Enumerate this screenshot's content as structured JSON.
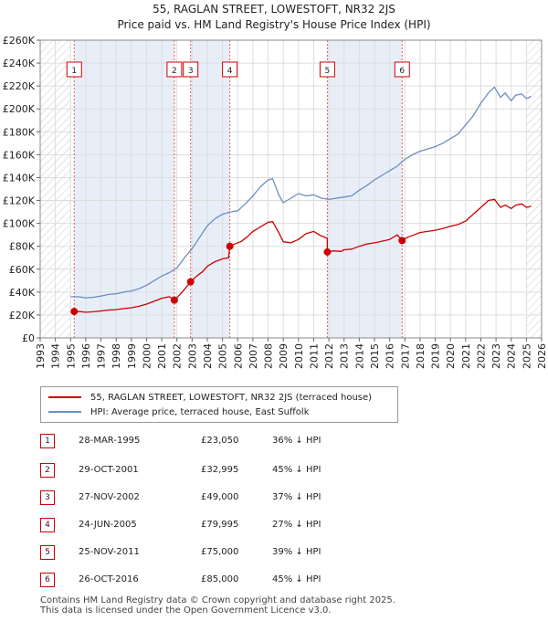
{
  "title": "55, RAGLAN STREET, LOWESTOFT, NR32 2JS",
  "subtitle": "Price paid vs. HM Land Registry's House Price Index (HPI)",
  "colors": {
    "red": "#cc0000",
    "blue": "#6a8fc0",
    "grid": "#dddddd",
    "band": "#e8eef8",
    "dash": "#e06060"
  },
  "legend": {
    "red_label": "55, RAGLAN STREET, LOWESTOFT, NR32 2JS (terraced house)",
    "blue_label": "HPI: Average price, terraced house, East Suffolk"
  },
  "sales": [
    {
      "num": "1",
      "date": "28-MAR-1995",
      "price": "£23,050",
      "hpi": "36% ↓ HPI"
    },
    {
      "num": "2",
      "date": "29-OCT-2001",
      "price": "£32,995",
      "hpi": "45% ↓ HPI"
    },
    {
      "num": "3",
      "date": "27-NOV-2002",
      "price": "£49,000",
      "hpi": "37% ↓ HPI"
    },
    {
      "num": "4",
      "date": "24-JUN-2005",
      "price": "£79,995",
      "hpi": "27% ↓ HPI"
    },
    {
      "num": "5",
      "date": "25-NOV-2011",
      "price": "£75,000",
      "hpi": "39% ↓ HPI"
    },
    {
      "num": "6",
      "date": "26-OCT-2016",
      "price": "£85,000",
      "hpi": "45% ↓ HPI"
    }
  ],
  "footer": {
    "line1": "Contains HM Land Registry data © Crown copyright and database right 2025.",
    "line2": "This data is licensed under the Open Government Licence v3.0."
  },
  "chart_data": {
    "type": "line",
    "title": "55, RAGLAN STREET, LOWESTOFT, NR32 2JS",
    "subtitle": "Price paid vs. HM Land Registry's House Price Index (HPI)",
    "xlim": [
      1993,
      2026
    ],
    "ylim": [
      0,
      260000
    ],
    "x_ticks": [
      1993,
      1994,
      1995,
      1996,
      1997,
      1998,
      1999,
      2000,
      2001,
      2002,
      2003,
      2004,
      2005,
      2006,
      2007,
      2008,
      2009,
      2010,
      2011,
      2012,
      2013,
      2014,
      2015,
      2016,
      2017,
      2018,
      2019,
      2020,
      2021,
      2022,
      2023,
      2024,
      2025,
      2026
    ],
    "y_ticks": [
      0,
      20000,
      40000,
      60000,
      80000,
      100000,
      120000,
      140000,
      160000,
      180000,
      200000,
      220000,
      240000,
      260000
    ],
    "y_tick_labels": [
      "£0",
      "£20K",
      "£40K",
      "£60K",
      "£80K",
      "£100K",
      "£120K",
      "£140K",
      "£160K",
      "£180K",
      "£200K",
      "£220K",
      "£240K",
      "£260K"
    ],
    "hatched_ranges": [
      [
        1993,
        1995.0
      ],
      [
        2025.0,
        2026
      ]
    ],
    "sale_markers": [
      {
        "label": "1",
        "year": 1995.24,
        "price": 23050
      },
      {
        "label": "2",
        "year": 2001.83,
        "price": 32995
      },
      {
        "label": "3",
        "year": 2002.9,
        "price": 49000
      },
      {
        "label": "4",
        "year": 2005.48,
        "price": 79995
      },
      {
        "label": "5",
        "year": 2011.9,
        "price": 75000
      },
      {
        "label": "6",
        "year": 2016.82,
        "price": 85000
      }
    ],
    "series": [
      {
        "name": "HPI: Average price, terraced house, East Suffolk",
        "color": "#6a8fc0",
        "x": [
          1995.0,
          1995.5,
          1996,
          1996.5,
          1997,
          1997.5,
          1998,
          1998.5,
          1999,
          1999.5,
          2000,
          2000.5,
          2001,
          2001.5,
          2002,
          2002.5,
          2003,
          2003.5,
          2004,
          2004.5,
          2005,
          2005.5,
          2006,
          2006.5,
          2007,
          2007.5,
          2008,
          2008.3,
          2008.7,
          2009,
          2009.5,
          2010,
          2010.5,
          2011,
          2011.5,
          2012,
          2012.5,
          2013,
          2013.5,
          2014,
          2014.5,
          2015,
          2015.5,
          2016,
          2016.5,
          2017,
          2017.5,
          2018,
          2018.5,
          2019,
          2019.5,
          2020,
          2020.5,
          2021,
          2021.5,
          2022,
          2022.5,
          2022.9,
          2023.3,
          2023.6,
          2024,
          2024.3,
          2024.7,
          2025,
          2025.3
        ],
        "values": [
          36000,
          36000,
          35000,
          35500,
          36500,
          38000,
          38500,
          40000,
          41000,
          43000,
          46000,
          50000,
          54000,
          57000,
          61000,
          70000,
          78000,
          88000,
          98000,
          104000,
          108000,
          110000,
          111000,
          117000,
          124000,
          132000,
          138000,
          139000,
          125000,
          118000,
          122000,
          126000,
          124000,
          125000,
          122000,
          121000,
          122000,
          123000,
          124000,
          129000,
          133000,
          138000,
          142000,
          146000,
          150000,
          156000,
          160000,
          163000,
          165000,
          167000,
          170000,
          174000,
          178000,
          186000,
          194000,
          205000,
          214000,
          219000,
          210000,
          214000,
          207000,
          212000,
          213000,
          209000,
          211000
        ]
      },
      {
        "name": "55, RAGLAN STREET, LOWESTOFT, NR32 2JS (terraced house)",
        "color": "#cc0000",
        "x": [
          1995.24,
          1995.6,
          1996,
          1996.5,
          1997,
          1997.5,
          1998,
          1998.5,
          1999,
          1999.5,
          2000,
          2000.5,
          2001,
          2001.5,
          2001.83,
          2002.2,
          2002.6,
          2002.9,
          2003.3,
          2003.7,
          2004,
          2004.5,
          2005,
          2005.4,
          2005.48,
          2005.8,
          2006.2,
          2006.6,
          2007,
          2007.5,
          2008,
          2008.3,
          2008.7,
          2009,
          2009.5,
          2010,
          2010.5,
          2011,
          2011.5,
          2011.89,
          2011.9,
          2012.3,
          2012.8,
          2013,
          2013.5,
          2014,
          2014.5,
          2015,
          2015.5,
          2016,
          2016.5,
          2016.82,
          2017.2,
          2017.6,
          2018,
          2018.5,
          2019,
          2019.5,
          2020,
          2020.5,
          2021,
          2021.5,
          2022,
          2022.5,
          2022.9,
          2023.3,
          2023.6,
          2024,
          2024.3,
          2024.7,
          2025,
          2025.3
        ],
        "values": [
          23050,
          23000,
          22400,
          22800,
          23500,
          24300,
          24700,
          25600,
          26300,
          27600,
          29500,
          32000,
          34600,
          36000,
          32995,
          38000,
          44000,
          49000,
          54000,
          58000,
          62500,
          66500,
          69000,
          70000,
          79995,
          82000,
          84000,
          88000,
          93000,
          97000,
          101000,
          101500,
          92000,
          84000,
          83000,
          86000,
          91000,
          93000,
          89000,
          87000,
          75000,
          76000,
          75500,
          77000,
          77500,
          80000,
          82000,
          83000,
          84500,
          86000,
          90000,
          85000,
          88000,
          90000,
          92000,
          93000,
          94000,
          95500,
          97500,
          99000,
          102000,
          108000,
          114000,
          120000,
          121000,
          114000,
          116000,
          113000,
          116000,
          117000,
          114000,
          115000
        ]
      }
    ]
  }
}
